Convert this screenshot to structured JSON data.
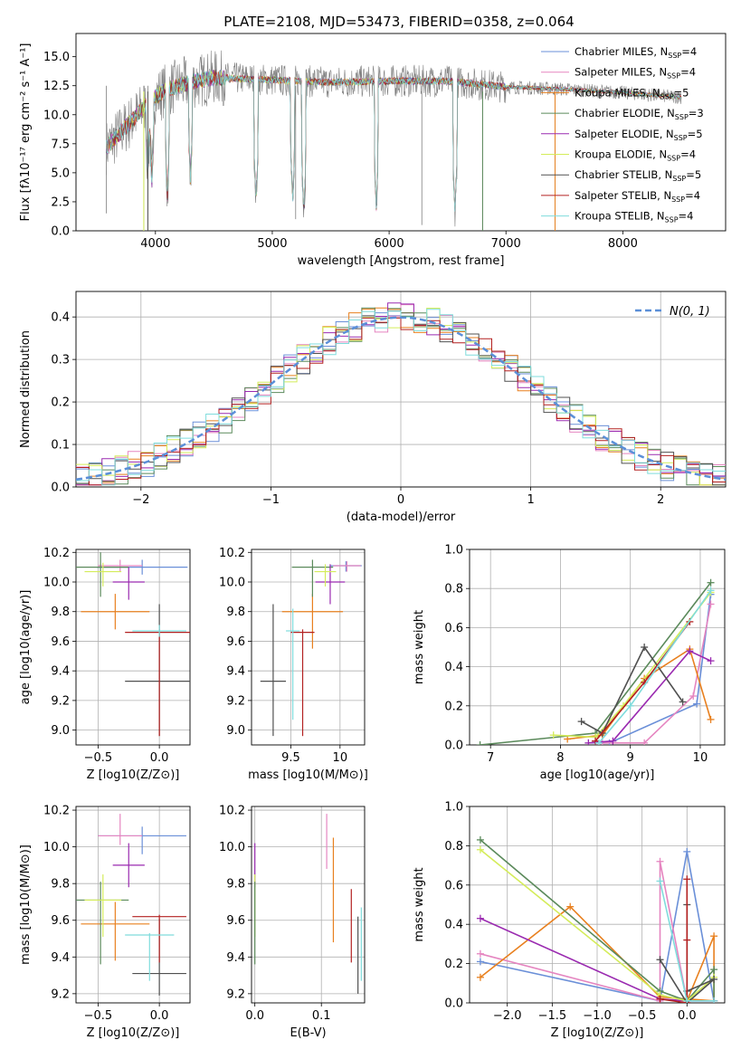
{
  "title": "PLATE=2108, MJD=53473, FIBERID=0358, z=0.064",
  "model_colors": [
    "#6a8fd8",
    "#e585c0",
    "#e8801f",
    "#5b8a5b",
    "#9a2ab0",
    "#d4ec5a",
    "#505050",
    "#b32020",
    "#7fdcdc"
  ],
  "chart_data": [
    {
      "id": "spectrum",
      "type": "line",
      "title": "PLATE=2108, MJD=53473, FIBERID=0358, z=0.064",
      "xlabel": "wavelength [Angstrom, rest frame]",
      "ylabel": "Flux [fλ10⁻¹⁷ erg cm⁻² s⁻¹ A⁻¹]",
      "xlim": [
        3320,
        8880
      ],
      "ylim": [
        0,
        17
      ],
      "xticks": [
        4000,
        5000,
        6000,
        7000,
        8000
      ],
      "yticks": [
        0.0,
        2.5,
        5.0,
        7.5,
        10.0,
        12.5,
        15.0
      ],
      "grid": false,
      "legend_position": "top-right",
      "x_range": [
        3580,
        8500
      ],
      "data_color": "#808080",
      "model_colors": [
        "#6a8fd8",
        "#e585c0",
        "#e8801f",
        "#5b8a5b",
        "#9a2ab0",
        "#d4ec5a",
        "#505050",
        "#b32020",
        "#7fdcdc"
      ],
      "continuum": [
        [
          3580,
          7.2
        ],
        [
          3700,
          8.5
        ],
        [
          3800,
          9.5
        ],
        [
          3950,
          11.2
        ],
        [
          4100,
          12.2
        ],
        [
          4300,
          12.8
        ],
        [
          4500,
          13.2
        ],
        [
          5000,
          13.0
        ],
        [
          5500,
          12.8
        ],
        [
          6000,
          12.9
        ],
        [
          6500,
          12.9
        ],
        [
          7000,
          12.4
        ],
        [
          7500,
          12.2
        ],
        [
          8000,
          11.9
        ],
        [
          8500,
          11.5
        ]
      ],
      "dips": [
        [
          3934,
          5.0
        ],
        [
          3969,
          4.0
        ],
        [
          4102,
          3.0
        ],
        [
          4300,
          4.5
        ],
        [
          4861,
          2.5
        ],
        [
          5175,
          2.5
        ],
        [
          5270,
          1.5
        ],
        [
          5890,
          2.0
        ],
        [
          6563,
          1.5
        ]
      ],
      "spikes": [
        [
          3580,
          1.5
        ],
        [
          3900,
          0.0
        ],
        [
          3935,
          0.0
        ],
        [
          5200,
          1.0
        ],
        [
          6280,
          0.5
        ],
        [
          6800,
          0.0
        ],
        [
          7420,
          0.0
        ]
      ],
      "legend": [
        "Chabrier MILES, N_SSP=4",
        "Salpeter MILES, N_SSP=4",
        "Kroupa MILES, N_SSP=5",
        "Chabrier ELODIE, N_SSP=3",
        "Salpeter ELODIE, N_SSP=5",
        "Kroupa ELODIE, N_SSP=4",
        "Chabrier STELIB, N_SSP=5",
        "Salpeter STELIB, N_SSP=4",
        "Kroupa STELIB, N_SSP=4"
      ]
    },
    {
      "id": "residuals",
      "type": "line",
      "xlabel": "(data-model)/error",
      "ylabel": "Normed distribution",
      "xlim": [
        -2.5,
        2.5
      ],
      "ylim": [
        0,
        0.46
      ],
      "xticks": [
        -2,
        -1,
        0,
        1,
        2
      ],
      "yticks": [
        0.0,
        0.1,
        0.2,
        0.3,
        0.4
      ],
      "grid": true,
      "legend_position": "top-right",
      "legend": [
        "N(0, 1)"
      ],
      "bin_width": 0.1,
      "gaussian": {
        "mean": 0,
        "sigma": 1,
        "color": "#5b8fd8"
      },
      "histogram_colors": [
        "#6a8fd8",
        "#e585c0",
        "#e8801f",
        "#5b8a5b",
        "#9a2ab0",
        "#d4ec5a",
        "#505050",
        "#b32020",
        "#7fdcdc"
      ]
    },
    {
      "id": "age-vs-Z",
      "type": "scatter",
      "xlabel": "Z [log10(Z/Z⊙)]",
      "ylabel": "age  [log10(age/yr)]",
      "xlim": [
        -0.68,
        0.25
      ],
      "ylim": [
        8.9,
        10.22
      ],
      "xticks": [
        -0.5,
        0.0
      ],
      "xticklabels": [
        "−0.5",
        "0.0"
      ],
      "yticks": [
        9.0,
        9.2,
        9.4,
        9.6,
        9.8,
        10.0,
        10.2
      ],
      "grid": true,
      "points": [
        {
          "x": -0.14,
          "xerr": 0.37,
          "y": 10.1,
          "yerr": [
            0.05,
            0.05
          ],
          "color": "#6a8fd8"
        },
        {
          "x": -0.32,
          "xerr": 0.18,
          "y": 10.11,
          "yerr": [
            0.04,
            0.04
          ],
          "color": "#e585c0"
        },
        {
          "x": -0.36,
          "xerr": 0.28,
          "y": 9.8,
          "yerr": [
            0.12,
            0.12
          ],
          "color": "#e8801f"
        },
        {
          "x": -0.48,
          "xerr": 0.23,
          "y": 10.1,
          "yerr": [
            0.2,
            0.1
          ],
          "color": "#5b8a5b"
        },
        {
          "x": -0.25,
          "xerr": 0.13,
          "y": 10.0,
          "yerr": [
            0.12,
            0.1
          ],
          "color": "#9a2ab0"
        },
        {
          "x": -0.46,
          "xerr": 0.15,
          "y": 10.07,
          "yerr": [
            0.1,
            0.06
          ],
          "color": "#d4ec5a"
        },
        {
          "x": 0.0,
          "xerr": 0.28,
          "y": 9.33,
          "yerr": [
            0.37,
            0.52
          ],
          "color": "#505050"
        },
        {
          "x": 0.0,
          "xerr": 0.28,
          "y": 9.66,
          "yerr": [
            0.7,
            0.02
          ],
          "color": "#b32020"
        },
        {
          "x": 0.0,
          "xerr": 0.22,
          "y": 9.67,
          "yerr": [
            0.04,
            0.04
          ],
          "color": "#7fdcdc"
        }
      ]
    },
    {
      "id": "age-vs-mass",
      "type": "scatter",
      "xlabel": "mass [log10(M/M⊙)]",
      "xlim": [
        9.1,
        10.25
      ],
      "ylim": [
        8.9,
        10.22
      ],
      "xticks": [
        9.5,
        10.0
      ],
      "yticks": [
        9.0,
        9.2,
        9.4,
        9.6,
        9.8,
        10.0,
        10.2
      ],
      "grid": true,
      "points": [
        {
          "x": 10.06,
          "xerr": 0.16,
          "y": 10.11,
          "yerr": [
            0.04,
            0.03
          ],
          "color": "#6a8fd8"
        },
        {
          "x": 10.07,
          "xerr": 0.14,
          "y": 10.11,
          "yerr": [
            0.04,
            0.03
          ],
          "color": "#e585c0"
        },
        {
          "x": 9.72,
          "xerr": 0.31,
          "y": 9.8,
          "yerr": [
            0.25,
            0.12
          ],
          "color": "#e8801f"
        },
        {
          "x": 9.72,
          "xerr": 0.21,
          "y": 10.1,
          "yerr": [
            0.2,
            0.05
          ],
          "color": "#5b8a5b"
        },
        {
          "x": 9.9,
          "xerr": 0.15,
          "y": 10.0,
          "yerr": [
            0.15,
            0.12
          ],
          "color": "#9a2ab0"
        },
        {
          "x": 9.85,
          "xerr": 0.11,
          "y": 10.07,
          "yerr": [
            0.1,
            0.05
          ],
          "color": "#d4ec5a"
        },
        {
          "x": 9.32,
          "xerr": 0.13,
          "y": 9.33,
          "yerr": [
            0.37,
            0.52
          ],
          "color": "#505050"
        },
        {
          "x": 9.62,
          "xerr": 0.12,
          "y": 9.66,
          "yerr": [
            0.7,
            0.02
          ],
          "color": "#b32020"
        },
        {
          "x": 9.52,
          "xerr": 0.07,
          "y": 9.67,
          "yerr": [
            0.6,
            0.15
          ],
          "color": "#7fdcdc"
        }
      ]
    },
    {
      "id": "weight-vs-age",
      "type": "line",
      "xlabel": "age  [log10(age/yr)]",
      "ylabel": "mass weight",
      "xlim": [
        6.7,
        10.35
      ],
      "ylim": [
        0,
        1
      ],
      "xticks": [
        7,
        8,
        9,
        10
      ],
      "yticks": [
        0.0,
        0.2,
        0.4,
        0.6,
        0.8,
        1.0
      ],
      "grid": true,
      "series": [
        {
          "color": "#6a8fd8",
          "points": [
            [
              8.5,
              0.01
            ],
            [
              8.7,
              0.01
            ],
            [
              9.95,
              0.21
            ],
            [
              10.15,
              0.77
            ]
          ]
        },
        {
          "color": "#e585c0",
          "points": [
            [
              8.6,
              0.01
            ],
            [
              9.2,
              0.01
            ],
            [
              9.9,
              0.25
            ],
            [
              10.15,
              0.72
            ]
          ]
        },
        {
          "color": "#e8801f",
          "points": [
            [
              8.1,
              0.03
            ],
            [
              8.6,
              0.05
            ],
            [
              9.2,
              0.34
            ],
            [
              9.85,
              0.49
            ],
            [
              10.15,
              0.13
            ]
          ]
        },
        {
          "color": "#5b8a5b",
          "points": [
            [
              6.85,
              0.0
            ],
            [
              8.5,
              0.06
            ],
            [
              10.15,
              0.83
            ]
          ]
        },
        {
          "color": "#9a2ab0",
          "points": [
            [
              8.4,
              0.01
            ],
            [
              8.75,
              0.02
            ],
            [
              9.85,
              0.48
            ],
            [
              10.15,
              0.43
            ]
          ]
        },
        {
          "color": "#d4ec5a",
          "points": [
            [
              7.9,
              0.05
            ],
            [
              8.5,
              0.04
            ],
            [
              8.9,
              0.2
            ],
            [
              10.15,
              0.78
            ]
          ]
        },
        {
          "color": "#505050",
          "points": [
            [
              8.3,
              0.12
            ],
            [
              8.6,
              0.06
            ],
            [
              9.2,
              0.5
            ],
            [
              9.75,
              0.22
            ]
          ]
        },
        {
          "color": "#b32020",
          "points": [
            [
              8.5,
              0.02
            ],
            [
              9.2,
              0.32
            ],
            [
              9.85,
              0.63
            ]
          ]
        },
        {
          "color": "#7fdcdc",
          "points": [
            [
              8.55,
              0.01
            ],
            [
              9.0,
              0.2
            ],
            [
              10.15,
              0.79
            ]
          ]
        }
      ]
    },
    {
      "id": "mass-vs-Z",
      "type": "scatter",
      "xlabel": "Z [log10(Z/Z⊙)]",
      "ylabel": "mass [log10(M/M⊙)]",
      "xlim": [
        -0.68,
        0.25
      ],
      "ylim": [
        9.15,
        10.22
      ],
      "xticks": [
        -0.5,
        0.0
      ],
      "xticklabels": [
        "−0.5",
        "0.0"
      ],
      "yticks": [
        9.2,
        9.4,
        9.6,
        9.8,
        10.0,
        10.2
      ],
      "grid": true,
      "points": [
        {
          "x": -0.14,
          "xerr": 0.36,
          "y": 10.06,
          "yerr": [
            0.1,
            0.05
          ],
          "color": "#6a8fd8"
        },
        {
          "x": -0.32,
          "xerr": 0.18,
          "y": 10.06,
          "yerr": [
            0.05,
            0.12
          ],
          "color": "#e585c0"
        },
        {
          "x": -0.36,
          "xerr": 0.28,
          "y": 9.58,
          "yerr": [
            0.2,
            0.12
          ],
          "color": "#e8801f"
        },
        {
          "x": -0.48,
          "xerr": 0.23,
          "y": 9.71,
          "yerr": [
            0.35,
            0.1
          ],
          "color": "#5b8a5b"
        },
        {
          "x": -0.25,
          "xerr": 0.13,
          "y": 9.9,
          "yerr": [
            0.12,
            0.12
          ],
          "color": "#9a2ab0"
        },
        {
          "x": -0.46,
          "xerr": 0.15,
          "y": 9.71,
          "yerr": [
            0.2,
            0.14
          ],
          "color": "#d4ec5a"
        },
        {
          "x": 0.0,
          "xerr": 0.22,
          "y": 9.31,
          "yerr": [
            0.12,
            0.3
          ],
          "color": "#505050"
        },
        {
          "x": 0.0,
          "xerr": 0.22,
          "y": 9.62,
          "yerr": [
            0.25,
            0.01
          ],
          "color": "#b32020"
        },
        {
          "x": -0.08,
          "xerr": 0.2,
          "y": 9.52,
          "yerr": [
            0.25,
            0.01
          ],
          "color": "#7fdcdc"
        }
      ]
    },
    {
      "id": "mass-vs-EBV",
      "type": "scatter",
      "xlabel": "E(B-V)",
      "xlim": [
        -0.005,
        0.165
      ],
      "ylim": [
        9.15,
        10.22
      ],
      "xticks": [
        0.0,
        0.1
      ],
      "yticks": [
        9.2,
        9.4,
        9.6,
        9.8,
        10.0,
        10.2
      ],
      "grid": true,
      "points": [
        {
          "x": 0.0,
          "y": 9.9,
          "yerr": [
            0.12,
            0.12
          ],
          "color": "#9a2ab0"
        },
        {
          "x": 0.0,
          "y": 9.71,
          "yerr": [
            0.2,
            0.14
          ],
          "color": "#d4ec5a"
        },
        {
          "x": 0.0,
          "y": 9.71,
          "yerr": [
            0.35,
            0.1
          ],
          "color": "#5b8a5b"
        },
        {
          "x": 0.108,
          "y": 10.06,
          "yerr": [
            0.18,
            0.12
          ],
          "color": "#e585c0"
        },
        {
          "x": 0.118,
          "y": 9.76,
          "yerr": [
            0.28,
            0.29
          ],
          "color": "#e8801f"
        },
        {
          "x": 0.145,
          "y": 9.62,
          "yerr": [
            0.25,
            0.15
          ],
          "color": "#b32020"
        },
        {
          "x": 0.155,
          "y": 9.4,
          "yerr": [
            0.2,
            0.22
          ],
          "color": "#505050"
        },
        {
          "x": 0.16,
          "y": 9.52,
          "yerr": [
            0.25,
            0.15
          ],
          "color": "#7fdcdc"
        }
      ]
    },
    {
      "id": "weight-vs-Z",
      "type": "line",
      "xlabel": "Z [log10(Z/Z⊙)]",
      "ylabel": "mass weight",
      "xlim": [
        -2.42,
        0.42
      ],
      "ylim": [
        0,
        1
      ],
      "xticks": [
        -2.0,
        -1.5,
        -1.0,
        -0.5,
        0.0
      ],
      "xticklabels": [
        "−2.0",
        "−1.5",
        "−1.0",
        "−0.5",
        "0.0"
      ],
      "yticks": [
        0.0,
        0.2,
        0.4,
        0.6,
        0.8,
        1.0
      ],
      "grid": true,
      "series": [
        {
          "color": "#6a8fd8",
          "points": [
            [
              -2.3,
              0.21
            ],
            [
              -0.3,
              0.01
            ],
            [
              0.0,
              0.77
            ],
            [
              0.3,
              0.01
            ]
          ]
        },
        {
          "color": "#e585c0",
          "points": [
            [
              -2.3,
              0.25
            ],
            [
              -0.3,
              0.01
            ],
            [
              -0.3,
              0.72
            ],
            [
              0.0,
              0.01
            ]
          ]
        },
        {
          "color": "#e8801f",
          "points": [
            [
              -2.3,
              0.13
            ],
            [
              -1.3,
              0.49
            ],
            [
              -0.3,
              0.03
            ],
            [
              0.3,
              0.01
            ],
            [
              0.3,
              0.34
            ],
            [
              0.0,
              0.01
            ]
          ]
        },
        {
          "color": "#5b8a5b",
          "points": [
            [
              -2.3,
              0.83
            ],
            [
              -0.3,
              0.06
            ],
            [
              0.0,
              0.01
            ],
            [
              0.3,
              0.17
            ],
            [
              0.3,
              0.01
            ]
          ]
        },
        {
          "color": "#9a2ab0",
          "points": [
            [
              -2.3,
              0.43
            ],
            [
              -0.3,
              0.02
            ],
            [
              0.0,
              0.01
            ],
            [
              0.3,
              0.01
            ]
          ]
        },
        {
          "color": "#d4ec5a",
          "points": [
            [
              -2.3,
              0.78
            ],
            [
              -0.3,
              0.04
            ],
            [
              0.0,
              0.01
            ],
            [
              0.3,
              0.13
            ]
          ]
        },
        {
          "color": "#505050",
          "points": [
            [
              -0.3,
              0.22
            ],
            [
              0.0,
              0.0
            ],
            [
              0.0,
              0.5
            ],
            [
              0.0,
              0.06
            ],
            [
              0.3,
              0.12
            ],
            [
              0.0,
              0.0
            ]
          ]
        },
        {
          "color": "#b32020",
          "points": [
            [
              -0.3,
              0.02
            ],
            [
              0.0,
              0.0
            ],
            [
              0.0,
              0.32
            ],
            [
              0.0,
              0.63
            ]
          ]
        },
        {
          "color": "#7fdcdc",
          "points": [
            [
              -0.3,
              0.62
            ],
            [
              0.0,
              0.01
            ],
            [
              0.3,
              0.01
            ]
          ]
        }
      ]
    }
  ]
}
